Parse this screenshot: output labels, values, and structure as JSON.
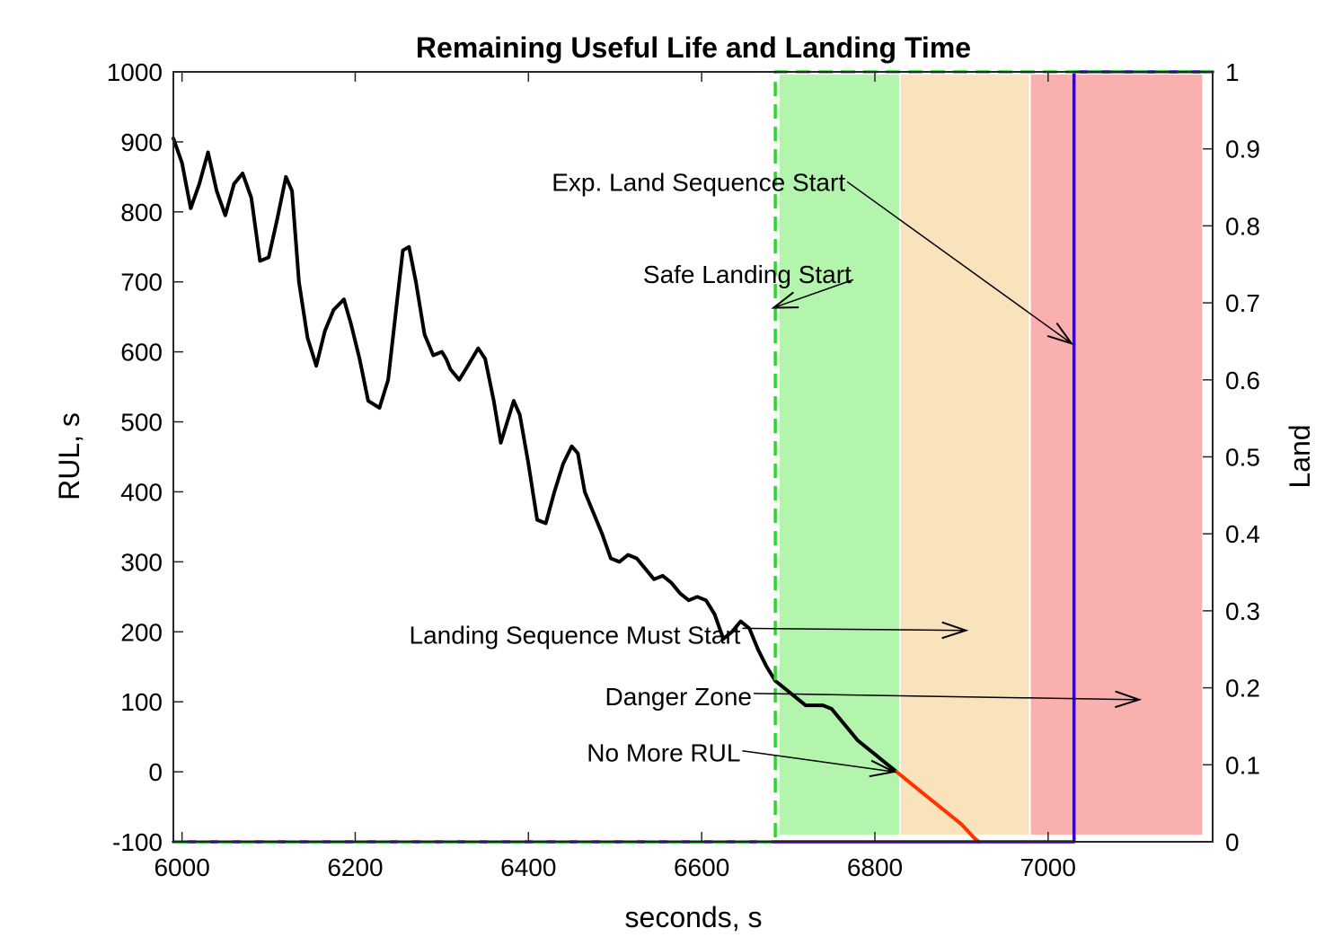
{
  "chart_data": {
    "type": "line",
    "title": "Remaining Useful Life and Landing Time",
    "xlabel": "seconds, s",
    "ylabel": "RUL, s",
    "y2label": "Land",
    "xlim": [
      5990,
      7190
    ],
    "ylim": [
      -100,
      1000
    ],
    "y2lim": [
      0,
      1
    ],
    "xticks": [
      6000,
      6200,
      6400,
      6600,
      6800,
      7000
    ],
    "yticks": [
      -100,
      0,
      100,
      200,
      300,
      400,
      500,
      600,
      700,
      800,
      900,
      1000
    ],
    "y2ticks": [
      0,
      0.1,
      0.2,
      0.3,
      0.4,
      0.5,
      0.6,
      0.7,
      0.8,
      0.9,
      1
    ],
    "grid": false,
    "zones": [
      {
        "name": "safe",
        "x0": 6690,
        "x1": 6830,
        "color": "#b3f5ac"
      },
      {
        "name": "landing-required",
        "x0": 6830,
        "x1": 6980,
        "color": "#f8e3bd"
      },
      {
        "name": "danger",
        "x0": 6980,
        "x1": 7180,
        "color": "#fbb0b0"
      }
    ],
    "series": [
      {
        "key": "rul",
        "color": "#000000",
        "x": [
          5990,
          6000,
          6010,
          6020,
          6030,
          6040,
          6050,
          6060,
          6070,
          6080,
          6090,
          6100,
          6110,
          6120,
          6127,
          6135,
          6145,
          6155,
          6165,
          6175,
          6187,
          6195,
          6205,
          6215,
          6228,
          6238,
          6248,
          6255,
          6262,
          6270,
          6280,
          6290,
          6300,
          6305,
          6310,
          6320,
          6330,
          6342,
          6350,
          6360,
          6368,
          6378,
          6383,
          6390,
          6400,
          6410,
          6420,
          6430,
          6440,
          6450,
          6457,
          6465,
          6475,
          6485,
          6495,
          6505,
          6515,
          6525,
          6535,
          6545,
          6555,
          6565,
          6575,
          6585,
          6595,
          6605,
          6615,
          6625,
          6635,
          6645,
          6655,
          6665,
          6675,
          6685,
          6690,
          6700,
          6710,
          6720,
          6730,
          6740,
          6750,
          6760,
          6770,
          6780,
          6790,
          6800,
          6810,
          6820,
          6825
        ],
        "y": [
          905,
          870,
          805,
          840,
          885,
          830,
          795,
          840,
          855,
          820,
          730,
          735,
          790,
          850,
          830,
          700,
          620,
          580,
          630,
          660,
          675,
          640,
          590,
          530,
          520,
          560,
          670,
          745,
          750,
          700,
          625,
          595,
          600,
          590,
          575,
          560,
          580,
          605,
          590,
          530,
          470,
          510,
          530,
          510,
          440,
          360,
          355,
          400,
          440,
          465,
          455,
          400,
          370,
          340,
          305,
          300,
          310,
          305,
          290,
          275,
          280,
          270,
          255,
          245,
          250,
          245,
          225,
          190,
          200,
          215,
          205,
          175,
          150,
          130,
          125,
          115,
          105,
          95,
          95,
          95,
          90,
          75,
          60,
          45,
          35,
          25,
          15,
          5,
          0
        ]
      },
      {
        "key": "rul-negative",
        "color": "#ff3300",
        "x": [
          6825,
          6840,
          6860,
          6880,
          6900,
          6915,
          6920
        ],
        "y": [
          0,
          -15,
          -35,
          -55,
          -75,
          -95,
          -100
        ]
      },
      {
        "key": "land",
        "color": "#3300cc",
        "axis": "right",
        "x": [
          5990,
          7030,
          7030,
          7190
        ],
        "y": [
          0,
          0,
          1,
          1
        ]
      },
      {
        "key": "safe-landing-line",
        "color": "#22dd22",
        "axis": "right",
        "dashed": true,
        "x": [
          5990,
          6685,
          6685,
          7190
        ],
        "y": [
          0,
          0,
          1,
          1
        ]
      }
    ],
    "annotations": [
      {
        "key": "exp-land-sequence-start",
        "text": "Exp. Land Sequence Start",
        "text_x": 5780,
        "text_y": 843,
        "arrow_from": [
          6768,
          843
        ],
        "arrow_to": [
          7027,
          612
        ]
      },
      {
        "key": "safe-landing-start",
        "text": "Safe Landing Start",
        "text_x": 5780,
        "text_y": 711,
        "arrow_from": [
          6775,
          703
        ],
        "arrow_to": [
          6683,
          663
        ]
      },
      {
        "key": "landing-sequence-must-start",
        "text": "Landing Sequence Must Start",
        "text_x": 5640,
        "text_y": 196,
        "arrow_from": [
          6647,
          205
        ],
        "arrow_to": [
          6905,
          202
        ]
      },
      {
        "key": "danger-zone",
        "text": "Danger Zone",
        "text_x": 5660,
        "text_y": 108,
        "arrow_from": [
          6660,
          112
        ],
        "arrow_to": [
          7105,
          103
        ]
      },
      {
        "key": "no-more-rul",
        "text": "No More RUL",
        "text_x": 5640,
        "text_y": 28,
        "arrow_from": [
          6647,
          30
        ],
        "arrow_to": [
          6822,
          0
        ]
      }
    ]
  }
}
